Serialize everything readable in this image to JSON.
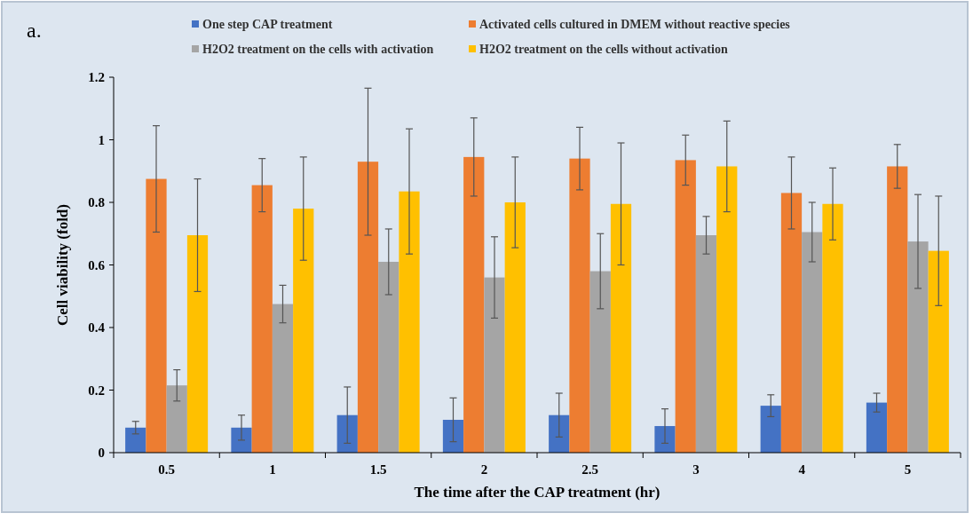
{
  "chart_data": {
    "type": "bar",
    "xlabel": "The time after the CAP treatment (hr)",
    "ylabel": "Cell viability (fold)",
    "annotations": [
      "a."
    ],
    "categories": [
      "0.5",
      "1",
      "1.5",
      "2",
      "2.5",
      "3",
      "4",
      "5"
    ],
    "ylim": [
      0,
      1.2
    ],
    "yticks": [
      0,
      0.2,
      0.4,
      0.6,
      0.8,
      1,
      1.2
    ],
    "legend": "top",
    "series": [
      {
        "name": "One step CAP treatment",
        "color": "#4472c4",
        "values": [
          0.08,
          0.08,
          0.12,
          0.105,
          0.12,
          0.085,
          0.15,
          0.16
        ],
        "errors": [
          0.02,
          0.04,
          0.09,
          0.07,
          0.07,
          0.055,
          0.035,
          0.03
        ]
      },
      {
        "name": "Activated cells cultured in DMEM without reactive species",
        "color": "#ed7d31",
        "values": [
          0.875,
          0.855,
          0.93,
          0.945,
          0.94,
          0.935,
          0.83,
          0.915
        ],
        "errors": [
          0.17,
          0.085,
          0.235,
          0.125,
          0.1,
          0.08,
          0.115,
          0.07
        ]
      },
      {
        "name": "H2O2 treatment on the cells with activation",
        "color": "#a5a5a5",
        "values": [
          0.215,
          0.475,
          0.61,
          0.56,
          0.58,
          0.695,
          0.705,
          0.675
        ],
        "errors": [
          0.05,
          0.06,
          0.105,
          0.13,
          0.12,
          0.06,
          0.095,
          0.15
        ]
      },
      {
        "name": "H2O2 treatment on the cells without activation",
        "color": "#ffc000",
        "values": [
          0.695,
          0.78,
          0.835,
          0.8,
          0.795,
          0.915,
          0.795,
          0.645
        ],
        "errors": [
          0.18,
          0.165,
          0.2,
          0.145,
          0.195,
          0.145,
          0.115,
          0.175
        ]
      }
    ]
  }
}
